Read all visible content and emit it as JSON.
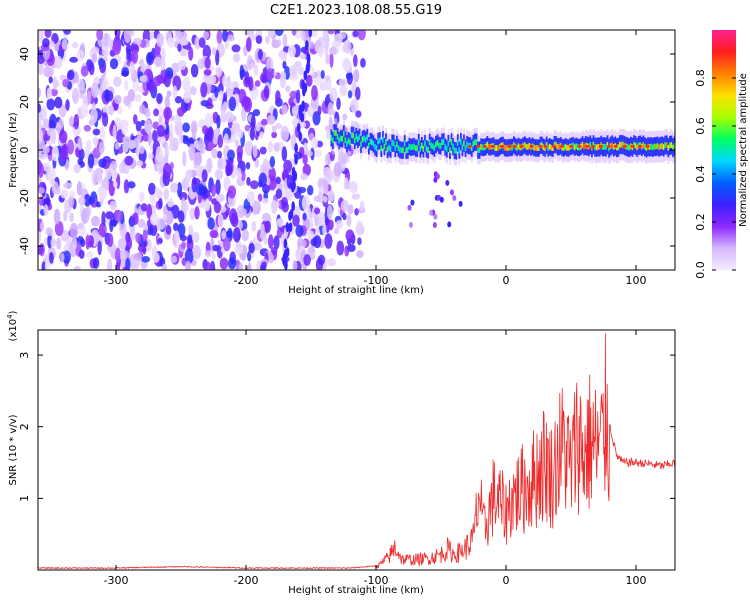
{
  "title": "C2E1.2023.108.08.55.G19",
  "chart_data": [
    {
      "type": "heatmap",
      "xlabel": "Height of straight line (km)",
      "ylabel": "Frequency (Hz)",
      "xlim": [
        -360,
        130
      ],
      "ylim": [
        -50,
        50
      ],
      "x_ticks": [
        -300,
        -200,
        -100,
        0,
        100
      ],
      "y_ticks": [
        -40,
        -20,
        0,
        20,
        40
      ],
      "colorbar": {
        "label": "Normalized spectral amplitude",
        "range": [
          0.0,
          1.0
        ],
        "ticks": [
          "0.0",
          "0.2",
          "0.4",
          "0.6",
          "0.8"
        ],
        "colors": [
          "#f4ecff",
          "#d6b8ff",
          "#8c28ff",
          "#3b20ff",
          "#0060ff",
          "#00d8ff",
          "#00ff60",
          "#a8ff00",
          "#ffe000",
          "#ff8000",
          "#ff1e1e",
          "#ff2090"
        ]
      },
      "regions": [
        {
          "name": "noise",
          "x": [
            -360,
            -110
          ],
          "y": [
            -50,
            50
          ],
          "amplitude": 0.2
        },
        {
          "name": "signal",
          "x": [
            -135,
            130
          ],
          "center_hz": 1.5,
          "width_hz": 6,
          "amplitude": 0.8
        }
      ]
    },
    {
      "type": "line",
      "xlabel": "Height of straight line (km)",
      "ylabel": "SNR (10 * v/v)",
      "y_multiplier": "(x10^4)",
      "xlim": [
        -360,
        130
      ],
      "ylim": [
        0,
        3.35
      ],
      "x_ticks": [
        -300,
        -200,
        -100,
        0,
        100
      ],
      "y_ticks": [
        1,
        2,
        3
      ],
      "color": "#ef2a2a",
      "series": [
        {
          "x": [
            -360,
            -300,
            -250,
            -200,
            -150,
            -120,
            -100,
            -90,
            -85,
            -80,
            -70,
            -60,
            -50,
            -45,
            -40,
            -35,
            -30,
            -25,
            -22,
            -20,
            -18,
            -15,
            -10,
            -5,
            0,
            5,
            10,
            15,
            20,
            25,
            30,
            35,
            40,
            45,
            50,
            55,
            60,
            65,
            70,
            75,
            78,
            80,
            85,
            90,
            95,
            100,
            110,
            120,
            130
          ],
          "y": [
            0.02,
            0.02,
            0.04,
            0.02,
            0.02,
            0.02,
            0.05,
            0.25,
            0.45,
            0.2,
            0.2,
            0.22,
            0.3,
            0.4,
            0.3,
            0.35,
            0.45,
            0.6,
            1.2,
            1.5,
            0.8,
            0.9,
            1.4,
            1.3,
            1.1,
            1.4,
            1.5,
            1.6,
            1.7,
            1.9,
            2.1,
            1.8,
            2.2,
            2.4,
            1.9,
            2.6,
            2.2,
            2.5,
            2.3,
            2.5,
            3.25,
            2.0,
            1.6,
            1.5,
            1.5,
            1.5,
            1.48,
            1.45,
            1.5
          ]
        }
      ]
    }
  ]
}
